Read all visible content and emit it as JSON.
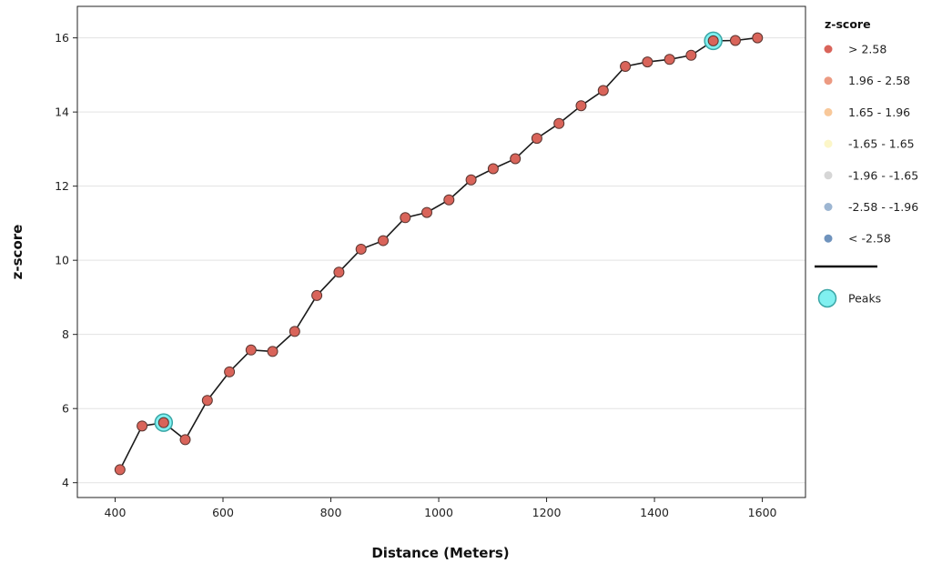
{
  "chart_data": {
    "type": "line",
    "xlabel": "Distance (Meters)",
    "ylabel": "z-score",
    "xlim": [
      330,
      1680
    ],
    "ylim": [
      3.6,
      16.85
    ],
    "xticks": [
      400,
      600,
      800,
      1000,
      1200,
      1400,
      1600
    ],
    "yticks": [
      4,
      6,
      8,
      10,
      12,
      14,
      16
    ],
    "grid": "horizontal",
    "series": [
      {
        "x": [
          409,
          450,
          490,
          530,
          571,
          612,
          652,
          692,
          733,
          774,
          815,
          856,
          897,
          938,
          978,
          1019,
          1060,
          1101,
          1142,
          1182,
          1223,
          1264,
          1305,
          1346,
          1387,
          1428,
          1468,
          1509,
          1550,
          1591
        ],
        "values": [
          4.35,
          5.53,
          5.62,
          5.16,
          6.22,
          6.99,
          7.58,
          7.54,
          8.08,
          9.05,
          9.68,
          10.3,
          10.53,
          11.15,
          11.29,
          11.63,
          12.17,
          12.47,
          12.74,
          13.29,
          13.69,
          14.17,
          14.58,
          15.23,
          15.35,
          15.42,
          15.53,
          15.92,
          15.93,
          16.0
        ],
        "line_color": "#1a1a1a",
        "marker_color": "#d9645a"
      }
    ],
    "peaks": {
      "x": [
        490,
        1509
      ],
      "values": [
        5.62,
        15.92
      ],
      "color": "#80f0f0"
    },
    "legend": {
      "placement": "right",
      "title": "z-score",
      "entries": [
        {
          "label": "> 2.58",
          "color": "#d9645a"
        },
        {
          "label": "1.96 - 2.58",
          "color": "#ec9a82"
        },
        {
          "label": "1.65 - 1.96",
          "color": "#f8c89a"
        },
        {
          "label": "-1.65 - 1.65",
          "color": "#fcf6c8"
        },
        {
          "label": "-1.96 - -1.65",
          "color": "#d6d6d6"
        },
        {
          "label": "-2.58 - -1.96",
          "color": "#9db6d2"
        },
        {
          "label": "< -2.58",
          "color": "#6f93bd"
        }
      ],
      "peaks_label": "Peaks"
    }
  }
}
